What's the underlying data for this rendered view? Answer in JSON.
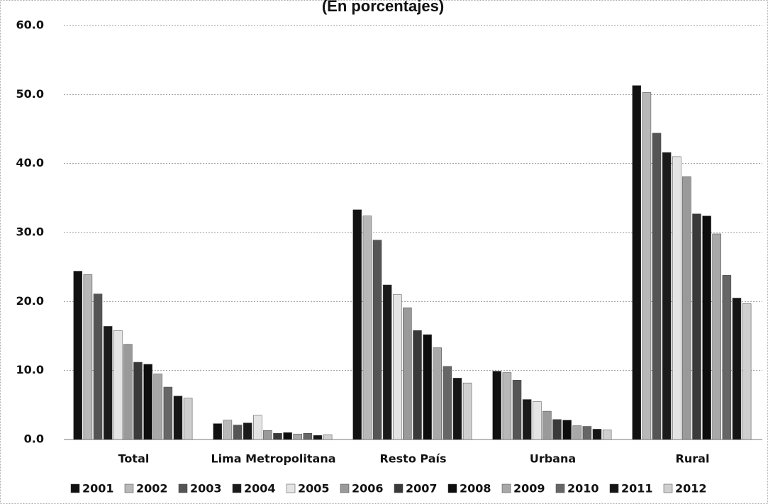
{
  "chart_data": {
    "type": "bar",
    "title": "(En porcentajes)",
    "categories": [
      "Total",
      "Lima Metropolitana",
      "Resto País",
      "Urbana",
      "Rural"
    ],
    "series": [
      {
        "name": "2001",
        "color": "#111111",
        "values": [
          24.4,
          2.3,
          33.3,
          9.9,
          51.3
        ]
      },
      {
        "name": "2002",
        "color": "#b8b8b8",
        "values": [
          23.9,
          2.8,
          32.4,
          9.7,
          50.3
        ]
      },
      {
        "name": "2003",
        "color": "#555555",
        "values": [
          21.1,
          2.1,
          28.9,
          8.6,
          44.4
        ]
      },
      {
        "name": "2004",
        "color": "#1a1a1a",
        "values": [
          16.4,
          2.4,
          22.4,
          5.8,
          41.6
        ]
      },
      {
        "name": "2005",
        "color": "#e4e4e4",
        "values": [
          15.8,
          3.5,
          21.0,
          5.5,
          41.0
        ]
      },
      {
        "name": "2006",
        "color": "#9a9a9a",
        "values": [
          13.8,
          1.3,
          19.1,
          4.1,
          38.1
        ]
      },
      {
        "name": "2007",
        "color": "#3a3a3a",
        "values": [
          11.2,
          0.9,
          15.8,
          2.9,
          32.7
        ]
      },
      {
        "name": "2008",
        "color": "#0d0d0d",
        "values": [
          10.9,
          1.0,
          15.2,
          2.8,
          32.4
        ]
      },
      {
        "name": "2009",
        "color": "#a8a8a8",
        "values": [
          9.5,
          0.8,
          13.3,
          2.0,
          29.8
        ]
      },
      {
        "name": "2010",
        "color": "#666666",
        "values": [
          7.6,
          0.9,
          10.6,
          1.9,
          23.8
        ]
      },
      {
        "name": "2011",
        "color": "#151515",
        "values": [
          6.3,
          0.6,
          8.9,
          1.5,
          20.5
        ]
      },
      {
        "name": "2012",
        "color": "#cfcfcf",
        "values": [
          6.0,
          0.7,
          8.2,
          1.4,
          19.7
        ]
      }
    ],
    "ylim": [
      0,
      60
    ],
    "yticks": [
      {
        "value": 0,
        "label": "0.0"
      },
      {
        "value": 10,
        "label": "10.0"
      },
      {
        "value": 20,
        "label": "20.0"
      },
      {
        "value": 30,
        "label": "30.0"
      },
      {
        "value": 40,
        "label": "40.0"
      },
      {
        "value": 50,
        "label": "50.0"
      },
      {
        "value": 60,
        "label": "60.0"
      }
    ],
    "grid": true
  }
}
